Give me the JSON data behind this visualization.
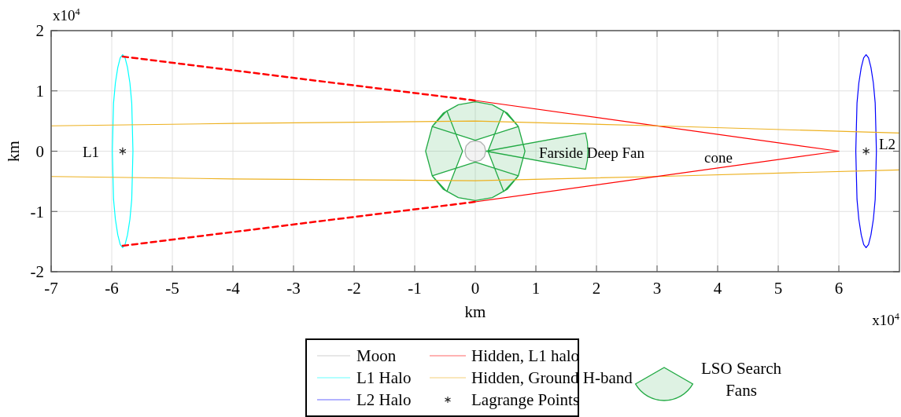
{
  "chart_data": {
    "type": "line",
    "xlabel": "km",
    "ylabel": "km",
    "xlim": [
      -7,
      7
    ],
    "ylim": [
      -2,
      2
    ],
    "xticks": [
      -7,
      -6,
      -5,
      -4,
      -3,
      -2,
      -1,
      0,
      1,
      2,
      3,
      4,
      5,
      6
    ],
    "yticks": [
      -2,
      -1,
      0,
      1,
      2
    ],
    "grid": true,
    "legend": "bottom",
    "series": [
      {
        "name": "Moon",
        "type": "area",
        "color": "#b0b0b0",
        "x": [
          0.17,
          0.16,
          0.15,
          0.12,
          0.09,
          0.05,
          0,
          -0.05,
          -0.09,
          -0.12,
          -0.15,
          -0.16,
          -0.17,
          -0.16,
          -0.15,
          -0.12,
          -0.09,
          -0.05,
          0,
          0.05,
          0.09,
          0.12,
          0.15,
          0.16
        ],
        "values": [
          0,
          0.05,
          0.09,
          0.12,
          0.15,
          0.16,
          0.17,
          0.16,
          0.15,
          0.12,
          0.09,
          0.05,
          0,
          -0.05,
          -0.09,
          -0.12,
          -0.15,
          -0.16,
          -0.17,
          -0.16,
          -0.15,
          -0.12,
          -0.09,
          -0.05
        ]
      },
      {
        "name": "L1 Halo",
        "color": "#00ffff",
        "x": [
          -5.99,
          -5.98,
          -5.97,
          -5.94,
          -5.9,
          -5.86,
          -5.82,
          -5.78,
          -5.74,
          -5.7,
          -5.67,
          -5.66,
          -5.65,
          null,
          -5.99,
          -5.98,
          -5.97,
          -5.94,
          -5.9,
          -5.86,
          -5.82,
          -5.78,
          -5.74,
          -5.7,
          -5.67,
          -5.66,
          -5.65
        ],
        "values": [
          0,
          0.41,
          0.8,
          1.13,
          1.39,
          1.55,
          1.6,
          1.55,
          1.39,
          1.13,
          0.8,
          0.41,
          0,
          null,
          0,
          -0.41,
          -0.8,
          -1.13,
          -1.39,
          -1.55,
          -1.6,
          -1.55,
          -1.39,
          -1.13,
          -0.8,
          -0.41,
          0
        ]
      },
      {
        "name": "L2 Halo",
        "color": "#0000ff",
        "x": [
          6.28,
          6.29,
          6.3,
          6.33,
          6.37,
          6.41,
          6.45,
          6.49,
          6.53,
          6.57,
          6.6,
          6.61,
          6.62,
          null,
          6.28,
          6.29,
          6.3,
          6.33,
          6.37,
          6.41,
          6.45,
          6.49,
          6.53,
          6.57,
          6.6,
          6.61,
          6.62
        ],
        "values": [
          0,
          0.41,
          0.8,
          1.13,
          1.39,
          1.55,
          1.6,
          1.55,
          1.39,
          1.13,
          0.8,
          0.41,
          0,
          null,
          0,
          -0.41,
          -0.8,
          -1.13,
          -1.39,
          -1.55,
          -1.6,
          -1.55,
          -1.39,
          -1.13,
          -0.8,
          -0.41,
          0
        ]
      },
      {
        "name": "Hidden, L1 halo",
        "color": "#ff0000",
        "x": [
          0,
          6
        ],
        "values": [
          0.84,
          0
        ]
      },
      {
        "name": "Hidden, Ground H-band",
        "color": "#edb120",
        "x": [
          -7,
          -4,
          0,
          3,
          7,
          null,
          -7,
          -4,
          0,
          3,
          7
        ],
        "values": [
          0.42,
          0.46,
          0.5,
          0.42,
          0.3,
          null,
          -0.42,
          -0.46,
          -0.49,
          -0.42,
          -0.31
        ]
      },
      {
        "name": "Lagrange Points",
        "type": "scatter",
        "marker": "cross",
        "color": "#222222",
        "x": [
          -5.82,
          6.45
        ],
        "values": [
          0,
          0
        ]
      },
      {
        "name": "LSO Search Fans",
        "type": "area",
        "color": "#22aa44",
        "x": [
          0,
          0.71,
          0.53,
          0.28,
          0,
          -0.28,
          -0.53,
          -0.71,
          null,
          0,
          0.71,
          0.53,
          0.28,
          0,
          -0.28,
          -0.53,
          -0.71,
          null,
          -0.21,
          -0.47,
          -0.71,
          -0.82,
          -0.71,
          -0.47,
          null,
          0.21,
          0.47,
          0.71,
          0.82,
          0.71,
          0.47,
          null,
          0.18,
          1.82,
          1.85,
          1.86,
          1.85,
          1.82
        ],
        "values": [
          0.18,
          0.41,
          0.63,
          0.77,
          0.82,
          0.77,
          0.63,
          0.41,
          null,
          -0.18,
          -0.41,
          -0.63,
          -0.77,
          -0.82,
          -0.77,
          -0.63,
          -0.41,
          null,
          0,
          0.67,
          0.41,
          0,
          -0.41,
          -0.67,
          null,
          0,
          0.67,
          0.41,
          0,
          -0.41,
          -0.67,
          null,
          0,
          0.3,
          0.15,
          0,
          -0.15,
          -0.3
        ]
      },
      {
        "color": "#ff0000",
        "x": [
          0,
          6
        ],
        "values": [
          -0.84,
          0
        ]
      },
      {
        "color": "#ff0000",
        "line_style": "dashed",
        "x": [
          -5.82,
          0
        ],
        "values": [
          1.57,
          0.84
        ]
      },
      {
        "color": "#ff0000",
        "line_style": "dashed",
        "x": [
          -5.82,
          0
        ],
        "values": [
          -1.57,
          -0.84
        ]
      }
    ],
    "annotations": [
      "x10$^{4}$",
      "x10$^{4}$",
      "L1",
      "L2",
      "Farside Deep Fan",
      "cone"
    ]
  }
}
